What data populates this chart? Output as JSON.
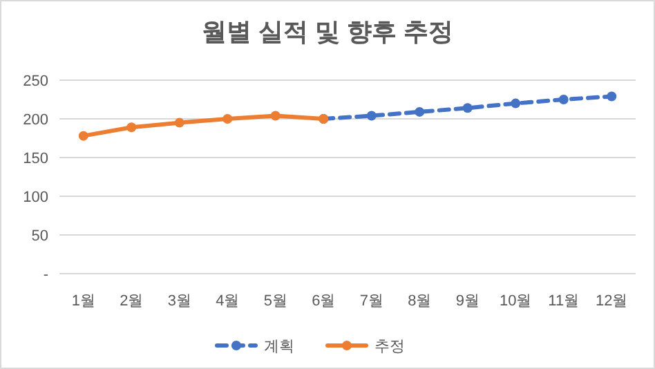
{
  "chart_data": {
    "type": "line",
    "title": "월별 실적 및 향후 추정",
    "categories": [
      "1월",
      "2월",
      "3월",
      "4월",
      "5월",
      "6월",
      "7월",
      "8월",
      "9월",
      "10월",
      "11월",
      "12월"
    ],
    "series": [
      {
        "name": "계획",
        "color": "#4472c4",
        "line_style": "dashed",
        "values": [
          null,
          null,
          null,
          null,
          null,
          200,
          204,
          209,
          214,
          220,
          225,
          229
        ]
      },
      {
        "name": "추정",
        "color": "#ed7d31",
        "line_style": "solid",
        "values": [
          178,
          189,
          195,
          200,
          204,
          200,
          null,
          null,
          null,
          null,
          null,
          null
        ]
      }
    ],
    "ylim": [
      0,
      250
    ],
    "yticks": [
      {
        "value": 0,
        "label": "-"
      },
      50,
      100,
      150,
      200,
      250
    ],
    "grid": "y",
    "legend": "bottom",
    "marker": "circle"
  }
}
